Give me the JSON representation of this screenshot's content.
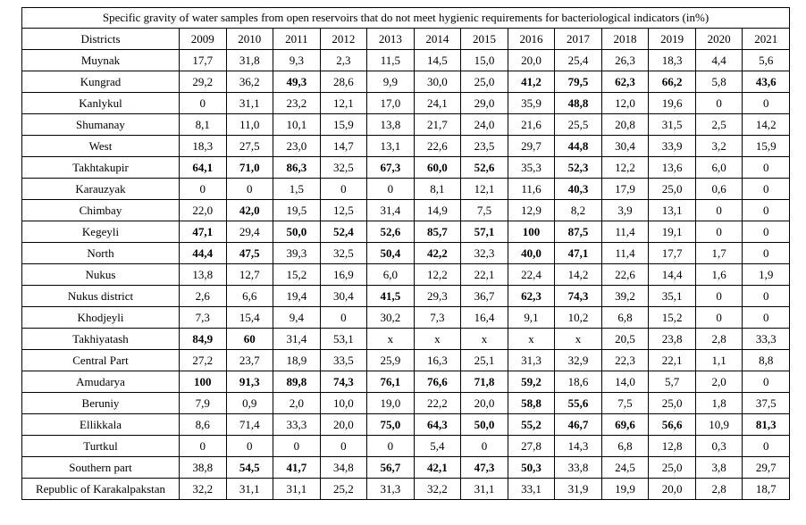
{
  "table": {
    "title": "Specific gravity of water samples from open reservoirs that do not meet hygienic requirements for bacteriological indicators (in%)",
    "header": [
      "Districts",
      "2009",
      "2010",
      "2011",
      "2012",
      "2013",
      "2014",
      "2015",
      "2016",
      "2017",
      "2018",
      "2019",
      "2020",
      "2021"
    ],
    "rows": [
      {
        "cells": [
          "Muynak",
          "17,7",
          "31,8",
          "9,3",
          "2,3",
          "11,5",
          "14,5",
          "15,0",
          "20,0",
          "25,4",
          "26,3",
          "18,3",
          "4,4",
          "5,6"
        ],
        "bold": []
      },
      {
        "cells": [
          "Kungrad",
          "29,2",
          "36,2",
          "49,3",
          "28,6",
          "9,9",
          "30,0",
          "25,0",
          "41,2",
          "79,5",
          "62,3",
          "66,2",
          "5,8",
          "43,6"
        ],
        "bold": [
          3,
          8,
          9,
          10,
          11,
          13
        ]
      },
      {
        "cells": [
          "Kanlykul",
          "0",
          "31,1",
          "23,2",
          "12,1",
          "17,0",
          "24,1",
          "29,0",
          "35,9",
          "48,8",
          "12,0",
          "19,6",
          "0",
          "0"
        ],
        "bold": [
          9
        ]
      },
      {
        "cells": [
          "Shumanay",
          "8,1",
          "11,0",
          "10,1",
          "15,9",
          "13,8",
          "21,7",
          "24,0",
          "21,6",
          "25,5",
          "20,8",
          "31,5",
          "2,5",
          "14,2"
        ],
        "bold": []
      },
      {
        "cells": [
          "West",
          "18,3",
          "27,5",
          "23,0",
          "14,7",
          "13,1",
          "22,6",
          "23,5",
          "29,7",
          "44,8",
          "30,4",
          "33,9",
          "3,2",
          "15,9"
        ],
        "bold": [
          9
        ]
      },
      {
        "cells": [
          "Takhtakupir",
          "64,1",
          "71,0",
          "86,3",
          "32,5",
          "67,3",
          "60,0",
          "52,6",
          "35,3",
          "52,3",
          "12,2",
          "13,6",
          "6,0",
          "0"
        ],
        "bold": [
          1,
          2,
          3,
          5,
          6,
          7,
          9
        ]
      },
      {
        "cells": [
          "Karauzyak",
          "0",
          "0",
          "1,5",
          "0",
          "0",
          "8,1",
          "12,1",
          "11,6",
          "40,3",
          "17,9",
          "25,0",
          "0,6",
          "0"
        ],
        "bold": [
          9
        ]
      },
      {
        "cells": [
          "Chimbay",
          "22,0",
          "42,0",
          "19,5",
          "12,5",
          "31,4",
          "14,9",
          "7,5",
          "12,9",
          "8,2",
          "3,9",
          "13,1",
          "0",
          "0"
        ],
        "bold": [
          2
        ]
      },
      {
        "cells": [
          "Kegeyli",
          "47,1",
          "29,4",
          "50,0",
          "52,4",
          "52,6",
          "85,7",
          "57,1",
          "100",
          "87,5",
          "11,4",
          "19,1",
          "0",
          "0"
        ],
        "bold": [
          1,
          3,
          4,
          5,
          6,
          7,
          8,
          9
        ]
      },
      {
        "cells": [
          "North",
          "44,4",
          "47,5",
          "39,3",
          "32,5",
          "50,4",
          "42,2",
          "32,3",
          "40,0",
          "47,1",
          "11,4",
          "17,7",
          "1,7",
          "0"
        ],
        "bold": [
          1,
          2,
          5,
          6,
          8,
          9
        ]
      },
      {
        "cells": [
          "Nukus",
          "13,8",
          "12,7",
          "15,2",
          "16,9",
          "6,0",
          "12,2",
          "22,1",
          "22,4",
          "14,2",
          "22,6",
          "14,4",
          "1,6",
          "1,9"
        ],
        "bold": []
      },
      {
        "cells": [
          "Nukus district",
          "2,6",
          "6,6",
          "19,4",
          "30,4",
          "41,5",
          "29,3",
          "36,7",
          "62,3",
          "74,3",
          "39,2",
          "35,1",
          "0",
          "0"
        ],
        "bold": [
          5,
          8,
          9
        ]
      },
      {
        "cells": [
          "Khodjeyli",
          "7,3",
          "15,4",
          "9,4",
          "0",
          "30,2",
          "7,3",
          "16,4",
          "9,1",
          "10,2",
          "6,8",
          "15,2",
          "0",
          "0"
        ],
        "bold": []
      },
      {
        "cells": [
          "Takhiyatash",
          "84,9",
          "60",
          "31,4",
          "53,1",
          "x",
          "x",
          "x",
          "x",
          "x",
          "20,5",
          "23,8",
          "2,8",
          "33,3"
        ],
        "bold": [
          1,
          2
        ]
      },
      {
        "cells": [
          "Central Part",
          "27,2",
          "23,7",
          "18,9",
          "33,5",
          "25,9",
          "16,3",
          "25,1",
          "31,3",
          "32,9",
          "22,3",
          "22,1",
          "1,1",
          "8,8"
        ],
        "bold": []
      },
      {
        "cells": [
          "Amudarya",
          "100",
          "91,3",
          "89,8",
          "74,3",
          "76,1",
          "76,6",
          "71,8",
          "59,2",
          "18,6",
          "14,0",
          "5,7",
          "2,0",
          "0"
        ],
        "bold": [
          1,
          2,
          3,
          4,
          5,
          6,
          7,
          8
        ]
      },
      {
        "cells": [
          "Beruniy",
          "7,9",
          "0,9",
          "2,0",
          "10,0",
          "19,0",
          "22,2",
          "20,0",
          "58,8",
          "55,6",
          "7,5",
          "25,0",
          "1,8",
          "37,5"
        ],
        "bold": [
          8,
          9
        ]
      },
      {
        "cells": [
          "Ellikkala",
          "8,6",
          "71,4",
          "33,3",
          "20,0",
          "75,0",
          "64,3",
          "50,0",
          "55,2",
          "46,7",
          "69,6",
          "56,6",
          "10,9",
          "81,3"
        ],
        "bold": [
          5,
          6,
          7,
          8,
          9,
          10,
          11,
          13
        ]
      },
      {
        "cells": [
          "Turtkul",
          "0",
          "0",
          "0",
          "0",
          "0",
          "5,4",
          "0",
          "27,8",
          "14,3",
          "6,8",
          "12,8",
          "0,3",
          "0"
        ],
        "bold": []
      },
      {
        "cells": [
          "Southern part",
          "38,8",
          "54,5",
          "41,7",
          "34,8",
          "56,7",
          "42,1",
          "47,3",
          "50,3",
          "33,8",
          "24,5",
          "25,0",
          "3,8",
          "29,7"
        ],
        "bold": [
          2,
          3,
          5,
          6,
          7,
          8
        ]
      },
      {
        "cells": [
          "Republic of Karakalpakstan",
          "32,2",
          "31,1",
          "31,1",
          "25,2",
          "31,3",
          "32,2",
          "31,1",
          "33,1",
          "31,9",
          "19,9",
          "20,0",
          "2,8",
          "18,7"
        ],
        "bold": []
      }
    ]
  }
}
